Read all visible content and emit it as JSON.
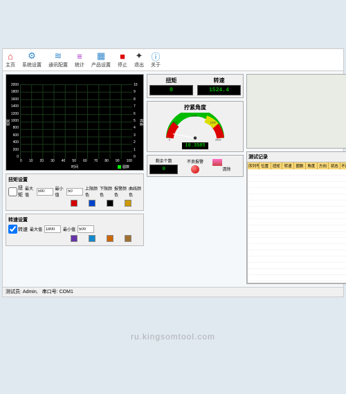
{
  "toolbar": [
    {
      "label": "主页",
      "icon": "home",
      "color": "#d22"
    },
    {
      "label": "系统设置",
      "icon": "gear",
      "color": "#38c"
    },
    {
      "label": "通讯配置",
      "icon": "comm",
      "color": "#38c"
    },
    {
      "label": "统计",
      "icon": "stats",
      "color": "#a3c"
    },
    {
      "label": "产品设置",
      "icon": "product",
      "color": "#38c"
    },
    {
      "label": "停止",
      "icon": "stop",
      "color": "#d00"
    },
    {
      "label": "退出",
      "icon": "exit",
      "color": "#333"
    },
    {
      "label": "关于",
      "icon": "info",
      "color": "#28c"
    }
  ],
  "chart": {
    "y_ticks": [
      "2000",
      "1800",
      "1600",
      "1400",
      "1200",
      "1000",
      "800",
      "600",
      "400",
      "200",
      "0"
    ],
    "y2_ticks": [
      "10",
      "9",
      "8",
      "7",
      "6",
      "5",
      "4",
      "3",
      "2",
      "1",
      "0"
    ],
    "x_ticks": [
      "0",
      "10",
      "20",
      "30",
      "40",
      "50",
      "60",
      "70",
      "80",
      "90",
      "100"
    ],
    "xlabel": "时间",
    "ylabel": "扭矩",
    "ylabel2": "转速",
    "legend": "圆数"
  },
  "torque_setting": {
    "title": "扭矩设置",
    "check_label": "扭矩",
    "max_label": "最大值",
    "max": "500",
    "min_label": "最小值",
    "min": "50",
    "c1_label": "上限颜色",
    "c2_label": "下限颜色",
    "c3_label": "报警颜色",
    "c4_label": "曲线颜色",
    "colors": [
      "#d40000",
      "#0044cc",
      "#000000",
      "#cc9900"
    ]
  },
  "speed_setting": {
    "title": "转速设置",
    "check_label": "转速",
    "max_label": "最大值",
    "max": "1800",
    "min_label": "最小值",
    "min": "500",
    "colors": [
      "#6633aa",
      "#1188cc",
      "#cc6600",
      "#a07030"
    ]
  },
  "readout": {
    "torque_label": "扭矩",
    "torque_val": "0",
    "speed_label": "转速",
    "speed_val": "1524.4"
  },
  "gauge": {
    "title": "拧紧角度",
    "scale_labels": [
      "0",
      "500",
      "1000",
      "1500",
      "2000"
    ],
    "value": "10.3585"
  },
  "alarm": {
    "remain_label": "剩余个数",
    "remain_val": "0",
    "alarm_label": "不良报警",
    "clear_label": "清除"
  },
  "records": {
    "title": "测试记录",
    "columns": [
      "序列号",
      "位置",
      "扭矩",
      "转速",
      "圈数",
      "角度",
      "方向",
      "状态",
      "不良报警",
      "测试时间"
    ]
  },
  "status": {
    "tester_label": "测试员:",
    "tester": "Admin,",
    "port_label": "串口号:",
    "port": "COM1"
  },
  "watermark": "ru.kingsomtool.com"
}
